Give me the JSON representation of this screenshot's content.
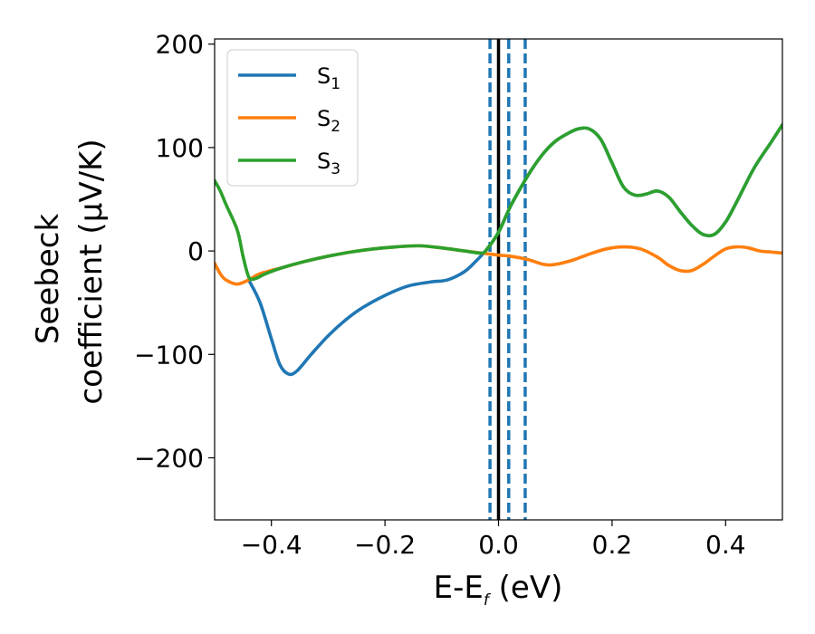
{
  "chart_data": {
    "type": "line",
    "xlabel": "E-E",
    "xlabel_subscript": "f",
    "xlabel_unit": "(eV)",
    "ylabel_line1": "Seebeck",
    "ylabel_line2": "coefficient  (μV/K)",
    "xlim": [
      -0.5,
      0.5
    ],
    "ylim": [
      -260,
      205
    ],
    "xticks": [
      -0.4,
      -0.2,
      0.0,
      0.2,
      0.4
    ],
    "xtick_labels": [
      "−0.4",
      "−0.2",
      "0.0",
      "0.2",
      "0.4"
    ],
    "yticks": [
      200,
      100,
      0,
      -100,
      -200
    ],
    "ytick_labels": [
      "200",
      "100",
      "0",
      "−100",
      "−200"
    ],
    "grid": false,
    "legend_position": "top-left",
    "vlines": [
      {
        "x": 0.0,
        "style": "solid",
        "color": "#000000"
      },
      {
        "x": -0.015,
        "style": "dashed",
        "color": "#1f77b4"
      },
      {
        "x": 0.018,
        "style": "dashed",
        "color": "#1f77b4"
      },
      {
        "x": 0.047,
        "style": "dashed",
        "color": "#1f77b4"
      }
    ],
    "series": [
      {
        "name": "S",
        "subscript": "1",
        "color": "#1f77b4",
        "points": [
          [
            -0.44,
            -28
          ],
          [
            -0.42,
            -50
          ],
          [
            -0.4,
            -85
          ],
          [
            -0.385,
            -110
          ],
          [
            -0.37,
            -119
          ],
          [
            -0.355,
            -116
          ],
          [
            -0.33,
            -100
          ],
          [
            -0.3,
            -82
          ],
          [
            -0.27,
            -67
          ],
          [
            -0.24,
            -55
          ],
          [
            -0.2,
            -43
          ],
          [
            -0.16,
            -34
          ],
          [
            -0.12,
            -30
          ],
          [
            -0.09,
            -28
          ],
          [
            -0.06,
            -20
          ],
          [
            -0.04,
            -10
          ],
          [
            -0.02,
            2
          ],
          [
            0.0,
            18
          ],
          [
            0.02,
            42
          ],
          [
            0.04,
            62
          ],
          [
            0.06,
            80
          ],
          [
            0.08,
            95
          ],
          [
            0.1,
            106
          ],
          [
            0.12,
            113
          ],
          [
            0.14,
            118
          ],
          [
            0.16,
            118
          ],
          [
            0.18,
            108
          ],
          [
            0.2,
            85
          ],
          [
            0.22,
            62
          ],
          [
            0.24,
            54
          ],
          [
            0.26,
            55
          ],
          [
            0.28,
            58
          ],
          [
            0.3,
            52
          ],
          [
            0.32,
            38
          ],
          [
            0.34,
            25
          ],
          [
            0.36,
            16
          ],
          [
            0.38,
            16
          ],
          [
            0.4,
            28
          ],
          [
            0.42,
            48
          ],
          [
            0.45,
            80
          ],
          [
            0.48,
            105
          ],
          [
            0.5,
            122
          ]
        ]
      },
      {
        "name": "S",
        "subscript": "2",
        "color": "#ff7f0e",
        "points": [
          [
            -0.5,
            -12
          ],
          [
            -0.49,
            -22
          ],
          [
            -0.48,
            -28
          ],
          [
            -0.46,
            -32
          ],
          [
            -0.44,
            -28
          ],
          [
            -0.42,
            -22
          ],
          [
            -0.38,
            -16
          ],
          [
            -0.34,
            -10
          ],
          [
            -0.3,
            -5
          ],
          [
            -0.26,
            -1
          ],
          [
            -0.22,
            2
          ],
          [
            -0.18,
            4
          ],
          [
            -0.14,
            5
          ],
          [
            -0.1,
            3
          ],
          [
            -0.06,
            0
          ],
          [
            -0.03,
            -2
          ],
          [
            0.0,
            -4
          ],
          [
            0.02,
            -5
          ],
          [
            0.05,
            -8
          ],
          [
            0.08,
            -13
          ],
          [
            0.1,
            -13
          ],
          [
            0.13,
            -9
          ],
          [
            0.16,
            -3
          ],
          [
            0.19,
            2
          ],
          [
            0.22,
            4
          ],
          [
            0.25,
            2
          ],
          [
            0.28,
            -6
          ],
          [
            0.3,
            -14
          ],
          [
            0.32,
            -19
          ],
          [
            0.34,
            -19
          ],
          [
            0.36,
            -13
          ],
          [
            0.38,
            -5
          ],
          [
            0.4,
            2
          ],
          [
            0.42,
            4
          ],
          [
            0.44,
            3
          ],
          [
            0.46,
            0
          ],
          [
            0.48,
            -1
          ],
          [
            0.5,
            -2
          ]
        ]
      },
      {
        "name": "S",
        "subscript": "3",
        "color": "#2ca02c",
        "points": [
          [
            -0.5,
            68
          ],
          [
            -0.49,
            58
          ],
          [
            -0.48,
            45
          ],
          [
            -0.46,
            20
          ],
          [
            -0.45,
            -5
          ],
          [
            -0.44,
            -25
          ],
          [
            -0.43,
            -27
          ],
          [
            -0.41,
            -22
          ],
          [
            -0.38,
            -16
          ],
          [
            -0.34,
            -10
          ],
          [
            -0.3,
            -5
          ],
          [
            -0.26,
            -1
          ],
          [
            -0.22,
            2
          ],
          [
            -0.18,
            4
          ],
          [
            -0.14,
            5
          ],
          [
            -0.1,
            3
          ],
          [
            -0.06,
            0
          ],
          [
            -0.03,
            -2
          ],
          [
            -0.02,
            2
          ],
          [
            0.0,
            18
          ],
          [
            0.02,
            42
          ],
          [
            0.04,
            62
          ],
          [
            0.06,
            80
          ],
          [
            0.08,
            95
          ],
          [
            0.1,
            106
          ],
          [
            0.12,
            113
          ],
          [
            0.14,
            118
          ],
          [
            0.16,
            118
          ],
          [
            0.18,
            108
          ],
          [
            0.2,
            85
          ],
          [
            0.22,
            62
          ],
          [
            0.24,
            54
          ],
          [
            0.26,
            55
          ],
          [
            0.28,
            58
          ],
          [
            0.3,
            52
          ],
          [
            0.32,
            38
          ],
          [
            0.34,
            25
          ],
          [
            0.36,
            16
          ],
          [
            0.38,
            16
          ],
          [
            0.4,
            28
          ],
          [
            0.42,
            48
          ],
          [
            0.45,
            80
          ],
          [
            0.48,
            105
          ],
          [
            0.5,
            122
          ]
        ]
      }
    ]
  }
}
